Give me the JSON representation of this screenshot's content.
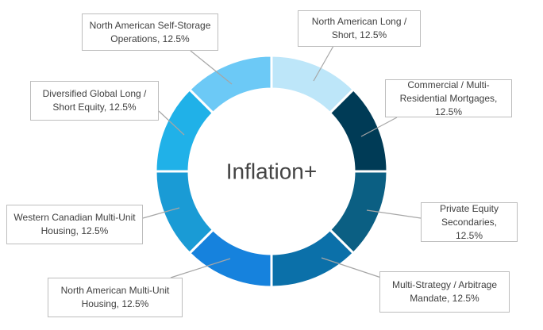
{
  "chart_data": {
    "type": "donut",
    "center_label": "Inflation+",
    "values": [
      12.5,
      12.5,
      12.5,
      12.5,
      12.5,
      12.5,
      12.5,
      12.5
    ],
    "value_labels": [
      "North American Long / Short, 12.5%",
      "Commercial / Multi-Residential Mortgages, 12.5%",
      "Private Equity Secondaries, 12.5%",
      "Multi-Strategy / Arbitrage Mandate, 12.5%",
      "North American Multi-Unit Housing, 12.5%",
      "Western Canadian Multi-Unit Housing, 12.5%",
      "Diversified Global Long / Short Equity, 12.5%",
      "North American Self-Storage Operations, 12.5%"
    ],
    "colors": [
      "#bde6f9",
      "#003b56",
      "#0b5f83",
      "#0b70a9",
      "#1682dd",
      "#1a9bd5",
      "#20b1e8",
      "#6cc9f6"
    ]
  }
}
